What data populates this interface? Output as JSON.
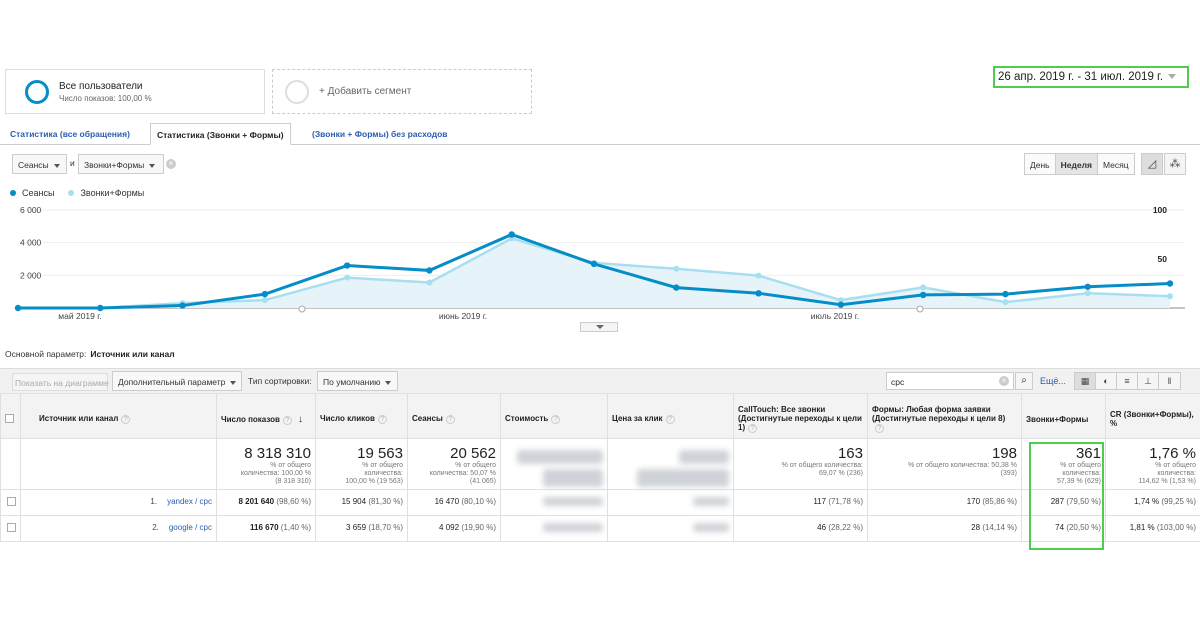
{
  "segments": {
    "active": {
      "title": "Все пользователи",
      "subtitle": "Число показов: 100,00 %"
    },
    "add_label": "+ Добавить сегмент"
  },
  "date_range": "26 апр. 2019 г. - 31 июл. 2019 г.",
  "tabs": [
    {
      "label": "Статистика (все обращения)"
    },
    {
      "label": "Статистика (Звонки + Формы)"
    },
    {
      "label": "(Звонки + Формы) без расходов"
    }
  ],
  "metric_selectors": {
    "metric1": "Сеансы",
    "and_label": "и",
    "metric2": "Звонки+Формы"
  },
  "granularity": {
    "day": "День",
    "week": "Неделя",
    "month": "Месяц",
    "active": "week"
  },
  "chart_data": {
    "type": "line",
    "series": [
      {
        "name": "Сеансы",
        "color": "#058dc7",
        "values": [
          0,
          0,
          150,
          850,
          2600,
          2300,
          4500,
          2700,
          1250,
          900,
          200,
          800,
          850,
          1300,
          1500
        ]
      },
      {
        "name": "Звонки+Формы",
        "color": "#a7dff0",
        "values": [
          0,
          0,
          5,
          8,
          31,
          26,
          71,
          46,
          40,
          33,
          8,
          21,
          6,
          15,
          12
        ]
      }
    ],
    "x_labels": [
      "май 2019 г.",
      "июнь 2019 г.",
      "июль 2019 г."
    ],
    "y_left": {
      "ticks": [
        "6 000",
        "4 000",
        "2 000"
      ],
      "max": 6000
    },
    "y_right": {
      "ticks": [
        "100",
        "50"
      ],
      "max": 100
    }
  },
  "primary_dimension": {
    "label": "Основной параметр:",
    "value": "Источник или канал"
  },
  "toolbar": {
    "show_on_chart": "Показать на диаграмме",
    "secondary_dimension": "Дополнительный параметр",
    "sort_type_label": "Тип сортировки:",
    "sort_type_value": "По умолчанию",
    "search_value": "cpc",
    "more_link": "Ещё..."
  },
  "table": {
    "headers": [
      "Источник или канал",
      "Число показов",
      "Число кликов",
      "Сеансы",
      "Стоимость",
      "Цена за клик",
      "CallTouch: Все звонки (Достигнутые переходы к цели 1)",
      "Формы: Любая форма заявки (Достигнутые переходы к цели 8)",
      "Звонки+Формы",
      "CR (Звонки+Формы), %"
    ],
    "totals": [
      {
        "value": "8 318 310",
        "sub1": "% от общего",
        "sub2": "количества: 100,00 %",
        "sub3": "(8 318 310)"
      },
      {
        "value": "19 563",
        "sub1": "% от общего",
        "sub2": "количества:",
        "sub3": "100,00 % (19 563)"
      },
      {
        "value": "20 562",
        "sub1": "% от общего",
        "sub2": "количества: 50,07 %",
        "sub3": "(41 065)"
      },
      {
        "value": "",
        "sub1": "",
        "sub2": "",
        "sub3": ""
      },
      {
        "value": "",
        "sub1": "",
        "sub2": "",
        "sub3": ""
      },
      {
        "value": "163",
        "sub1": "% от общего количества:",
        "sub2": "69,07 % (236)",
        "sub3": ""
      },
      {
        "value": "198",
        "sub1": "% от общего количества: 50,38 %",
        "sub2": "(393)",
        "sub3": ""
      },
      {
        "value": "361",
        "sub1": "% от общего",
        "sub2": "количества:",
        "sub3": "57,39 % (629)"
      },
      {
        "value": "1,76 %",
        "sub1": "% от общего",
        "sub2": "количества:",
        "sub3": "114,62 % (1,53 %)"
      }
    ],
    "rows": [
      {
        "num": "1.",
        "source": "yandex / cpc",
        "impressions": "8 201 640",
        "impressions_pct": "(98,60 %)",
        "clicks": "15 904",
        "clicks_pct": "(81,30 %)",
        "sessions": "16 470",
        "sessions_pct": "(80,10 %)",
        "calltouch": "117",
        "calltouch_pct": "(71,78 %)",
        "forms": "170",
        "forms_pct": "(85,86 %)",
        "calls_forms": "287",
        "calls_forms_pct": "(79,50 %)",
        "cr": "1,74 %",
        "cr_pct": "(99,25 %)"
      },
      {
        "num": "2.",
        "source": "google / cpc",
        "impressions": "116 670",
        "impressions_pct": "(1,40 %)",
        "clicks": "3 659",
        "clicks_pct": "(18,70 %)",
        "sessions": "4 092",
        "sessions_pct": "(19,90 %)",
        "calltouch": "46",
        "calltouch_pct": "(28,22 %)",
        "forms": "28",
        "forms_pct": "(14,14 %)",
        "calls_forms": "74",
        "calls_forms_pct": "(20,50 %)",
        "cr": "1,81 %",
        "cr_pct": "(103,00 %)"
      }
    ]
  }
}
